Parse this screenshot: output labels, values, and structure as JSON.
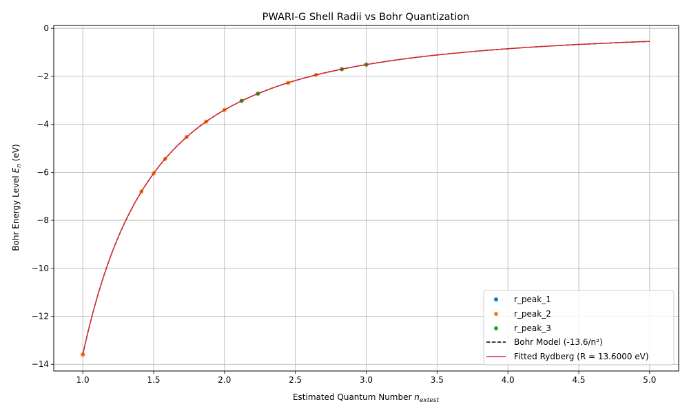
{
  "chart_data": {
    "type": "scatter",
    "title": "PWARI-G Shell Radii vs Bohr Quantization",
    "xlabel_main": "Estimated Quantum Number ",
    "xlabel_sym": "n",
    "xlabel_sub": "extest",
    "ylabel_main": "Bohr Energy Level ",
    "ylabel_sym": "E",
    "ylabel_sub": "n",
    "ylabel_unit": " (eV)",
    "xlim": [
      0.795,
      5.205
    ],
    "ylim": [
      -14.28,
      0.12
    ],
    "xticks": [
      1.0,
      1.5,
      2.0,
      2.5,
      3.0,
      3.5,
      4.0,
      4.5,
      5.0
    ],
    "xtick_labels": [
      "1.0",
      "1.5",
      "2.0",
      "2.5",
      "3.0",
      "3.5",
      "4.0",
      "4.5",
      "5.0"
    ],
    "yticks": [
      0,
      -2,
      -4,
      -6,
      -8,
      -10,
      -12,
      -14
    ],
    "ytick_labels": [
      "0",
      "−2",
      "−4",
      "−6",
      "−8",
      "−10",
      "−12",
      "−14"
    ],
    "grid": true,
    "legend_position": "bottom-right",
    "series": [
      {
        "name": "r_peak_1",
        "kind": "scatter",
        "color": "#1f77b4",
        "points": [
          [
            1.0,
            -13.6
          ]
        ]
      },
      {
        "name": "r_peak_2",
        "kind": "scatter",
        "color": "#ff7f0e",
        "points": [
          [
            1.0,
            -13.6
          ],
          [
            1.414,
            -6.8
          ],
          [
            1.5,
            -6.04
          ],
          [
            1.581,
            -5.44
          ],
          [
            1.732,
            -4.53
          ],
          [
            1.871,
            -3.89
          ],
          [
            2.0,
            -3.4
          ],
          [
            2.121,
            -3.02
          ],
          [
            2.236,
            -2.72
          ],
          [
            2.449,
            -2.27
          ],
          [
            2.646,
            -1.94
          ],
          [
            2.828,
            -1.7
          ],
          [
            3.0,
            -1.51
          ]
        ]
      },
      {
        "name": "r_peak_3",
        "kind": "scatter",
        "color": "#2ca02c",
        "points": [
          [
            2.121,
            -3.02
          ],
          [
            2.236,
            -2.72
          ],
          [
            2.828,
            -1.7
          ],
          [
            3.0,
            -1.51
          ]
        ]
      },
      {
        "name": "Bohr Model (-13.6/n²)",
        "kind": "line",
        "color": "#000000",
        "dashed": true,
        "function": "bohr",
        "coefficient": 13.6,
        "x_range": [
          1.0,
          5.0
        ]
      },
      {
        "name": "Fitted Rydberg (R = 13.6000 eV)",
        "kind": "line",
        "color": "#d62728",
        "dashed": false,
        "function": "bohr",
        "coefficient": 13.6,
        "x_range": [
          1.0,
          5.0
        ]
      }
    ]
  }
}
